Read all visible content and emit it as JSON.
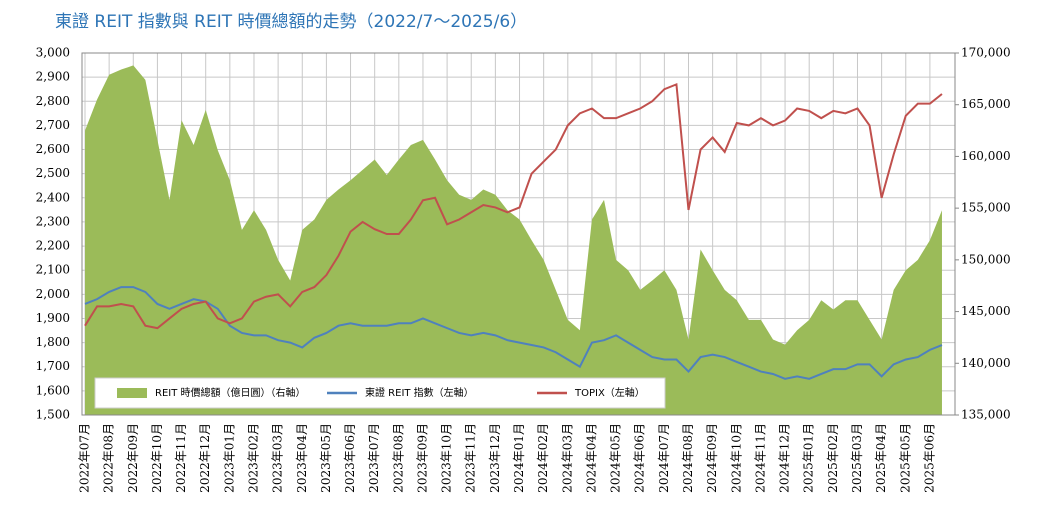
{
  "chart_data": {
    "type": "area-line",
    "title": "東證 REIT 指數與 REIT 時價總額的走勢（2022/7～2025/6）",
    "categories": [
      "2022年07月",
      null,
      "2022年08月",
      null,
      "2022年09月",
      null,
      "2022年10月",
      null,
      "2022年11月",
      null,
      "2022年12月",
      null,
      "2023年01月",
      null,
      "2023年02月",
      null,
      "2023年03月",
      null,
      "2023年04月",
      null,
      "2023年05月",
      null,
      "2023年06月",
      null,
      "2023年07月",
      null,
      "2023年08月",
      null,
      "2023年09月",
      null,
      "2023年10月",
      null,
      "2023年11月",
      null,
      "2023年12月",
      null,
      "2024年01月",
      null,
      "2024年02月",
      null,
      "2024年03月",
      null,
      "2024年04月",
      null,
      "2024年05月",
      null,
      "2024年06月",
      null,
      "2024年07月",
      null,
      "2024年08月",
      null,
      "2024年09月",
      null,
      "2024年10月",
      null,
      "2024年11月",
      null,
      "2024年12月",
      null,
      "2025年01月",
      null,
      "2025年02月",
      null,
      "2025年03月",
      null,
      "2025年04月",
      null,
      "2025年05月",
      null,
      "2025年06月",
      null
    ],
    "series": [
      {
        "name": "REIT 時價總額（億日圓）（右軸）",
        "color": "#9bbb59",
        "kind": "area",
        "axis": "y2",
        "values": [
          162500,
          165500,
          167900,
          168400,
          168800,
          167400,
          161600,
          155800,
          163500,
          161100,
          164500,
          160600,
          157700,
          152900,
          154800,
          152900,
          150000,
          148000,
          152900,
          153900,
          155800,
          156800,
          157700,
          158700,
          159700,
          158200,
          159700,
          161100,
          161600,
          159700,
          157700,
          156300,
          155800,
          156800,
          156300,
          154800,
          153900,
          151900,
          150000,
          147100,
          144200,
          143200,
          153900,
          155800,
          150000,
          149000,
          147100,
          148000,
          149000,
          147100,
          142300,
          151000,
          149000,
          147100,
          146100,
          144200,
          144200,
          142300,
          141800,
          143200,
          144200,
          146100,
          145200,
          146100,
          146100,
          144200,
          142300,
          147100,
          149000,
          150000,
          151900,
          154800
        ]
      },
      {
        "name": "東證 REIT 指數（左軸）",
        "color": "#4f81bd",
        "kind": "line",
        "values": [
          1960,
          1980,
          2010,
          2030,
          2030,
          2010,
          1960,
          1940,
          1960,
          1980,
          1970,
          1940,
          1870,
          1840,
          1830,
          1830,
          1810,
          1800,
          1780,
          1820,
          1840,
          1870,
          1880,
          1870,
          1870,
          1870,
          1880,
          1880,
          1900,
          1880,
          1860,
          1840,
          1830,
          1840,
          1830,
          1810,
          1800,
          1790,
          1780,
          1760,
          1730,
          1700,
          1800,
          1810,
          1830,
          1800,
          1770,
          1740,
          1730,
          1730,
          1680,
          1740,
          1750,
          1740,
          1720,
          1700,
          1680,
          1670,
          1650,
          1660,
          1650,
          1670,
          1690,
          1690,
          1710,
          1710,
          1660,
          1710,
          1730,
          1740,
          1770,
          1790
        ]
      },
      {
        "name": "TOPIX（左軸）",
        "color": "#c0504d",
        "kind": "line",
        "values": [
          1870,
          1950,
          1950,
          1960,
          1950,
          1870,
          1860,
          1900,
          1940,
          1960,
          1970,
          1900,
          1880,
          1900,
          1970,
          1990,
          2000,
          1950,
          2010,
          2030,
          2080,
          2160,
          2260,
          2300,
          2270,
          2250,
          2250,
          2310,
          2390,
          2400,
          2290,
          2310,
          2340,
          2370,
          2360,
          2340,
          2360,
          2500,
          2550,
          2600,
          2700,
          2750,
          2770,
          2730,
          2730,
          2750,
          2770,
          2800,
          2850,
          2870,
          2350,
          2600,
          2650,
          2590,
          2710,
          2700,
          2730,
          2700,
          2720,
          2770,
          2760,
          2730,
          2760,
          2750,
          2770,
          2700,
          2400,
          2580,
          2740,
          2790,
          2790,
          2830
        ]
      }
    ],
    "ylim": [
      1500,
      3000
    ],
    "yticks": [
      {
        "value": 1500,
        "label": "1,500"
      },
      {
        "value": 1600,
        "label": "1,600"
      },
      {
        "value": 1700,
        "label": "1,700"
      },
      {
        "value": 1800,
        "label": "1,800"
      },
      {
        "value": 1900,
        "label": "1,900"
      },
      {
        "value": 2000,
        "label": "2,000"
      },
      {
        "value": 2100,
        "label": "2,100"
      },
      {
        "value": 2200,
        "label": "2,200"
      },
      {
        "value": 2300,
        "label": "2,300"
      },
      {
        "value": 2400,
        "label": "2,400"
      },
      {
        "value": 2500,
        "label": "2,500"
      },
      {
        "value": 2600,
        "label": "2,600"
      },
      {
        "value": 2700,
        "label": "2,700"
      },
      {
        "value": 2800,
        "label": "2,800"
      },
      {
        "value": 2900,
        "label": "2,900"
      },
      {
        "value": 3000,
        "label": "3,000"
      }
    ],
    "y2lim": [
      135000,
      170000
    ],
    "y2ticks": [
      {
        "value": 135000,
        "label": "135,000"
      },
      {
        "value": 140000,
        "label": "140,000"
      },
      {
        "value": 145000,
        "label": "145,000"
      },
      {
        "value": 150000,
        "label": "150,000"
      },
      {
        "value": 155000,
        "label": "155,000"
      },
      {
        "value": 160000,
        "label": "160,000"
      },
      {
        "value": 165000,
        "label": "165,000"
      },
      {
        "value": 170000,
        "label": "170,000"
      }
    ],
    "grid": true,
    "legend": "lower-left"
  }
}
